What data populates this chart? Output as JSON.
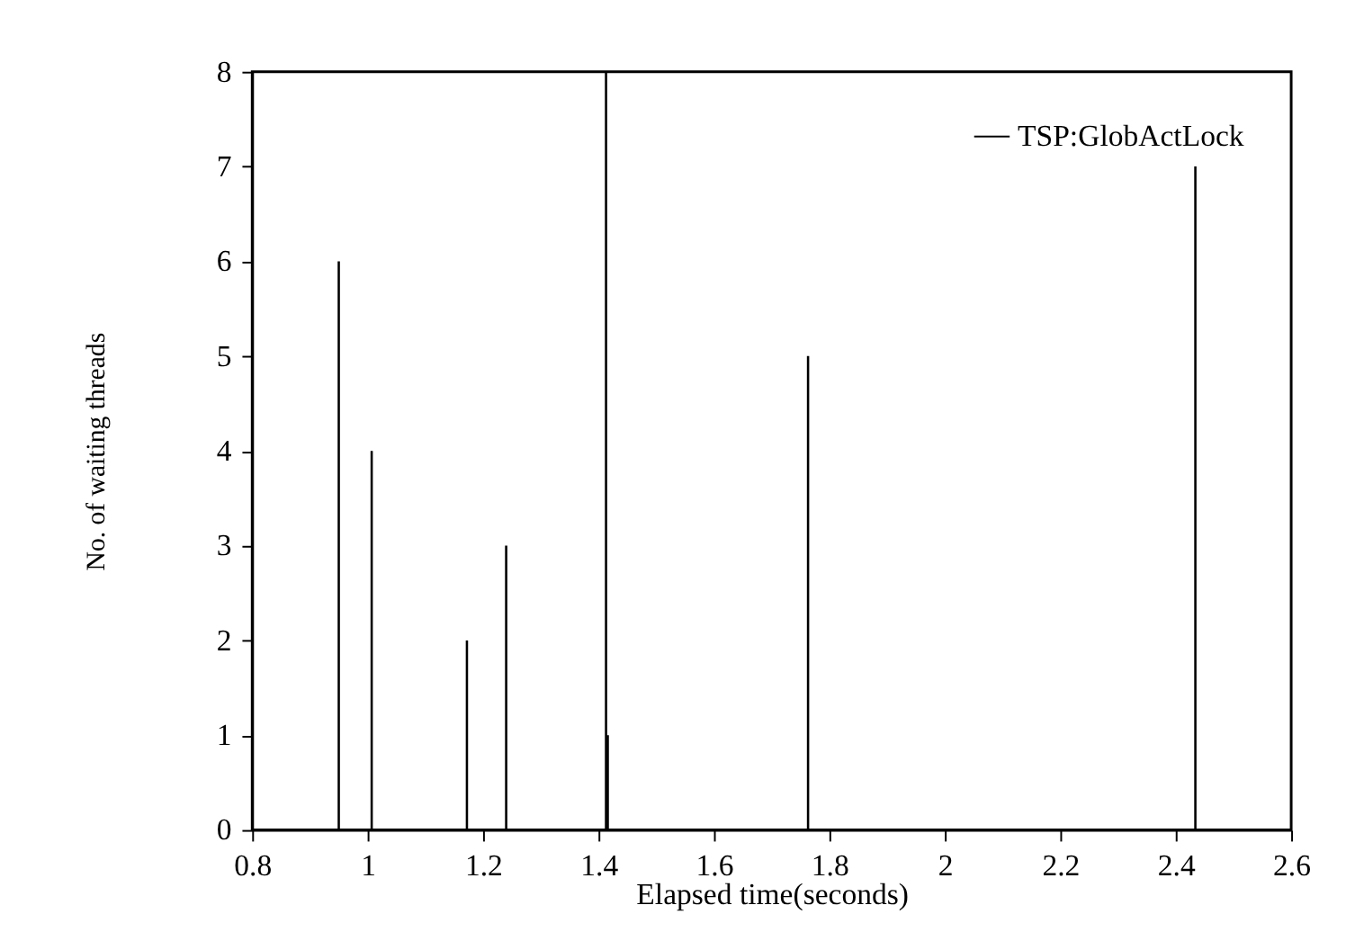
{
  "chart_data": {
    "type": "bar",
    "xlabel": "Elapsed time(seconds)",
    "ylabel": "No. of waiting threads",
    "x": [
      0.95,
      1.007,
      1.172,
      1.24,
      1.413,
      1.416,
      1.763,
      2.434
    ],
    "series": [
      {
        "name": "TSP:GlobActLock",
        "color": "#000000",
        "values": [
          6,
          4,
          2,
          3,
          8,
          1,
          5,
          7
        ]
      }
    ],
    "xlim": [
      0.8,
      2.6
    ],
    "xticks": [
      0.8,
      1,
      1.2,
      1.4,
      1.6,
      1.8,
      2,
      2.2,
      2.4,
      2.6
    ],
    "ylim": [
      0,
      8
    ],
    "yticks": [
      0,
      1,
      2,
      3,
      4,
      5,
      6,
      7,
      8
    ],
    "grid": false,
    "legend": "top right"
  }
}
